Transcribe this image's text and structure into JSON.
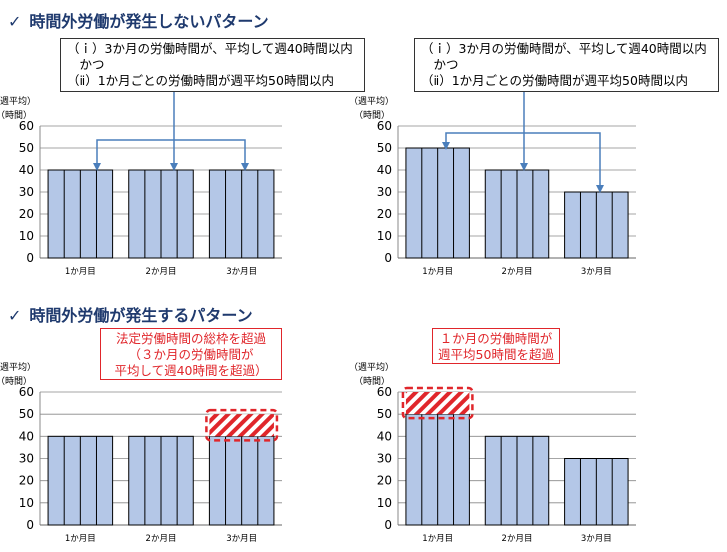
{
  "sections": [
    {
      "check": "✓",
      "title": "時間外労働が発生しないパターン"
    },
    {
      "check": "✓",
      "title": "時間外労働が発生するパターン"
    }
  ],
  "condition_boxes": [
    {
      "lines": [
        "（ｉ）3か月の労働時間が、平均して週40時間以内",
        "　かつ",
        "（ⅱ）1か月ごとの労働時間が週平均50時間以内"
      ]
    },
    {
      "lines": [
        "（ｉ）3か月の労働時間が、平均して週40時間以内",
        "　かつ",
        "（ⅱ）1か月ごとの労働時間が週平均50時間以内"
      ]
    }
  ],
  "callouts": [
    {
      "lines": [
        "法定労働時間の総枠を超過",
        "（３か月の労働時間が",
        "平均して週40時間を超過）"
      ]
    },
    {
      "lines": [
        "１か月の労働時間が",
        "週平均50時間を超過"
      ]
    }
  ],
  "colors": {
    "bar_fill": "#b4c7e7",
    "bar_stroke": "#000000",
    "arrow": "#4a7ebb",
    "title": "#1f3a6e",
    "alert": "#e0262b"
  },
  "chart_data": [
    {
      "type": "bar",
      "categories": [
        "1か月目",
        "2か月目",
        "3か月目"
      ],
      "values": [
        40,
        40,
        40
      ],
      "ylabel": "（週平均）",
      "yunit": "（時間）",
      "ylim": [
        0,
        60
      ],
      "yticks": [
        0,
        10,
        20,
        30,
        40,
        50,
        60
      ],
      "grid": true
    },
    {
      "type": "bar",
      "categories": [
        "1か月目",
        "2か月目",
        "3か月目"
      ],
      "values": [
        50,
        40,
        30
      ],
      "ylabel": "（週平均）",
      "yunit": "（時間）",
      "ylim": [
        0,
        60
      ],
      "yticks": [
        0,
        10,
        20,
        30,
        40,
        50,
        60
      ],
      "grid": true
    },
    {
      "type": "bar",
      "categories": [
        "1か月目",
        "2か月目",
        "3か月目"
      ],
      "values": [
        40,
        40,
        50
      ],
      "ylabel": "（週平均）",
      "yunit": "（時間）",
      "ylim": [
        0,
        60
      ],
      "yticks": [
        0,
        10,
        20,
        30,
        40,
        50,
        60
      ],
      "grid": true,
      "excess": {
        "category_index": 2,
        "from": 40,
        "to": 50
      }
    },
    {
      "type": "bar",
      "categories": [
        "1か月目",
        "2か月目",
        "3か月目"
      ],
      "values": [
        60,
        40,
        30
      ],
      "ylabel": "（週平均）",
      "yunit": "（時間）",
      "ylim": [
        0,
        60
      ],
      "yticks": [
        0,
        10,
        20,
        30,
        40,
        50,
        60
      ],
      "grid": true,
      "excess": {
        "category_index": 0,
        "from": 50,
        "to": 60
      }
    }
  ]
}
